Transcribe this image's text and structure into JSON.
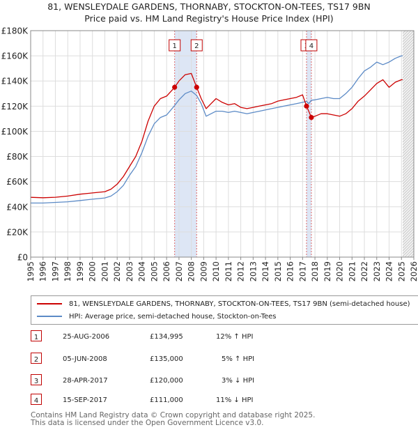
{
  "title": "81, WENSLEYDALE GARDENS, THORNABY, STOCKTON-ON-TEES, TS17 9BN",
  "subtitle": "Price paid vs. HM Land Registry's House Price Index (HPI)",
  "chart_data": {
    "type": "line",
    "x_range": [
      1995,
      2026
    ],
    "ylim": [
      0,
      180000
    ],
    "y_ticks": [
      0,
      20000,
      40000,
      60000,
      80000,
      100000,
      120000,
      140000,
      160000,
      180000
    ],
    "y_tick_labels": [
      "£0",
      "£20K",
      "£40K",
      "£60K",
      "£80K",
      "£100K",
      "£120K",
      "£140K",
      "£160K",
      "£180K"
    ],
    "x_ticks": [
      1995,
      1996,
      1997,
      1998,
      1999,
      2000,
      2001,
      2002,
      2003,
      2004,
      2005,
      2006,
      2007,
      2008,
      2009,
      2010,
      2011,
      2012,
      2013,
      2014,
      2015,
      2016,
      2017,
      2018,
      2019,
      2020,
      2021,
      2022,
      2023,
      2024,
      2025,
      2026
    ],
    "x_tick_labels": [
      "1995",
      "1996",
      "1997",
      "1998",
      "1999",
      "2000",
      "2001",
      "2002",
      "2003",
      "2004",
      "2005",
      "2006",
      "2007",
      "2008",
      "2009",
      "2010",
      "2011",
      "2012",
      "2013",
      "2014",
      "2015",
      "2016",
      "2017",
      "2018",
      "2019",
      "2020",
      "2021",
      "2022",
      "2023",
      "2024",
      "2025",
      "2026"
    ],
    "grid": true,
    "shaded_ranges": [
      [
        2006.65,
        2008.43
      ],
      [
        2017.32,
        2017.71
      ]
    ],
    "projection_start": 2025.1,
    "series": [
      {
        "name": "81, WENSLEYDALE GARDENS, THORNABY, STOCKTON-ON-TEES, TS17 9BN (semi-detached house)",
        "color": "#cc0000",
        "x": [
          1995,
          1996,
          1997,
          1998,
          1999,
          2000,
          2001,
          2001.5,
          2002,
          2002.5,
          2003,
          2003.5,
          2004,
          2004.5,
          2005,
          2005.5,
          2006,
          2006.65,
          2007,
          2007.5,
          2008,
          2008.43,
          2008.8,
          2009.2,
          2009.6,
          2010,
          2010.5,
          2011,
          2011.5,
          2012,
          2012.5,
          2013,
          2013.5,
          2014,
          2014.5,
          2015,
          2015.5,
          2016,
          2016.5,
          2017,
          2017.32,
          2017.5,
          2017.71,
          2018,
          2018.5,
          2019,
          2019.5,
          2020,
          2020.5,
          2021,
          2021.5,
          2022,
          2022.5,
          2023,
          2023.5,
          2024,
          2024.5,
          2025,
          2025.1
        ],
        "values": [
          47500,
          47200,
          47600,
          48500,
          50000,
          51000,
          52000,
          54000,
          58000,
          64000,
          72000,
          80000,
          92000,
          108000,
          120000,
          126000,
          128000,
          134995,
          140000,
          145000,
          146000,
          135000,
          126000,
          118000,
          122000,
          126000,
          123000,
          121000,
          122000,
          119000,
          118000,
          119000,
          120000,
          121000,
          122000,
          124000,
          125000,
          126000,
          127000,
          129000,
          120000,
          116000,
          111000,
          112000,
          114000,
          114000,
          113000,
          112000,
          114000,
          118000,
          124000,
          128000,
          133000,
          138000,
          141000,
          135000,
          139000,
          141000,
          141000
        ]
      },
      {
        "name": "HPI: Average price, semi-detached house, Stockton-on-Tees",
        "color": "#5b8ac6",
        "x": [
          1995,
          1996,
          1997,
          1998,
          1999,
          2000,
          2001,
          2001.5,
          2002,
          2002.5,
          2003,
          2003.5,
          2004,
          2004.5,
          2005,
          2005.5,
          2006,
          2006.65,
          2007,
          2007.5,
          2008,
          2008.43,
          2008.8,
          2009.2,
          2009.6,
          2010,
          2010.5,
          2011,
          2011.5,
          2012,
          2012.5,
          2013,
          2013.5,
          2014,
          2014.5,
          2015,
          2015.5,
          2016,
          2016.5,
          2017,
          2017.32,
          2017.5,
          2017.71,
          2018,
          2018.5,
          2019,
          2019.5,
          2020,
          2020.5,
          2021,
          2021.5,
          2022,
          2022.5,
          2023,
          2023.5,
          2024,
          2024.5,
          2025,
          2025.1
        ],
        "values": [
          43000,
          43000,
          43500,
          44000,
          45000,
          46000,
          47000,
          48500,
          52000,
          57000,
          65000,
          72000,
          83000,
          96000,
          106000,
          111000,
          113000,
          120500,
          125000,
          130000,
          132000,
          128500,
          122000,
          112000,
          114000,
          116000,
          116000,
          115000,
          116000,
          115000,
          114000,
          115000,
          116000,
          117000,
          118000,
          119000,
          120000,
          121000,
          122000,
          123000,
          123800,
          122000,
          124700,
          125000,
          126000,
          127000,
          126000,
          126000,
          130000,
          135000,
          142000,
          148000,
          151000,
          155000,
          153000,
          155000,
          158000,
          160000,
          160000
        ]
      }
    ],
    "sales": [
      {
        "label": "1",
        "x": 2006.65,
        "value": 134995
      },
      {
        "label": "2",
        "x": 2008.43,
        "value": 135000
      },
      {
        "label": "3",
        "x": 2017.32,
        "value": 120000
      },
      {
        "label": "4",
        "x": 2017.71,
        "value": 111000
      }
    ]
  },
  "legend": {
    "property_label": "81, WENSLEYDALE GARDENS, THORNABY, STOCKTON-ON-TEES, TS17 9BN (semi-detached house)",
    "hpi_label": "HPI: Average price, semi-detached house, Stockton-on-Tees",
    "property_color": "#cc0000",
    "hpi_color": "#5b8ac6"
  },
  "transactions": [
    {
      "num": "1",
      "date": "25-AUG-2006",
      "price": "£134,995",
      "hpi": "12% ↑ HPI"
    },
    {
      "num": "2",
      "date": "05-JUN-2008",
      "price": "£135,000",
      "hpi": "5% ↑ HPI"
    },
    {
      "num": "3",
      "date": "28-APR-2017",
      "price": "£120,000",
      "hpi": "3% ↓ HPI"
    },
    {
      "num": "4",
      "date": "15-SEP-2017",
      "price": "£111,000",
      "hpi": "11% ↓ HPI"
    }
  ],
  "footer": {
    "line1": "Contains HM Land Registry data © Crown copyright and database right 2025.",
    "line2": "This data is licensed under the Open Government Licence v3.0."
  }
}
